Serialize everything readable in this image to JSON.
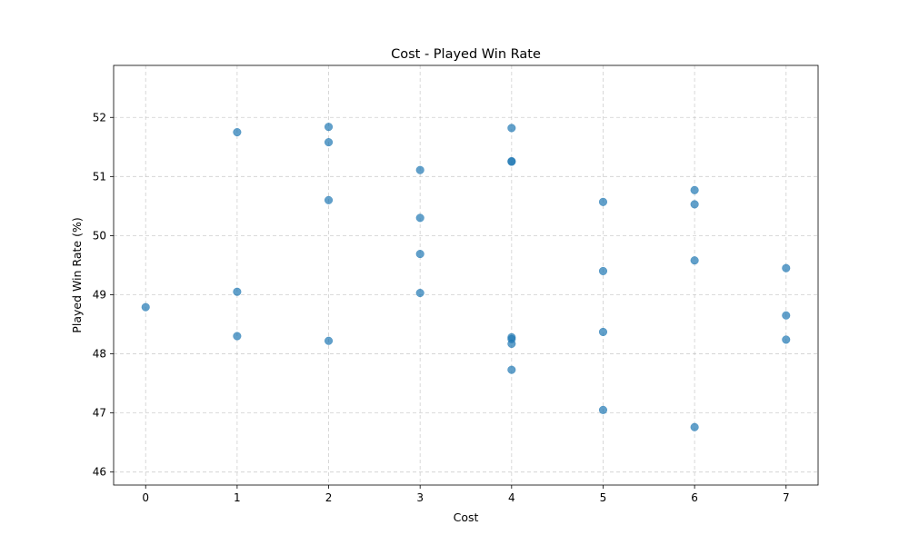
{
  "chart_data": {
    "type": "scatter",
    "title": "Cost - Played Win Rate",
    "xlabel": "Cost",
    "ylabel": "Played Win Rate (%)",
    "xlim": [
      -0.35,
      7.35
    ],
    "ylim": [
      45.78,
      52.88
    ],
    "xticks": [
      0,
      1,
      2,
      3,
      4,
      5,
      6,
      7
    ],
    "yticks": [
      46,
      47,
      48,
      49,
      50,
      51,
      52
    ],
    "grid": true,
    "point_color": "#1f77b4",
    "point_opacity": 0.7,
    "points": [
      {
        "x": 0,
        "y": 48.79
      },
      {
        "x": 1,
        "y": 51.75
      },
      {
        "x": 1,
        "y": 49.05
      },
      {
        "x": 1,
        "y": 48.3
      },
      {
        "x": 2,
        "y": 51.84
      },
      {
        "x": 2,
        "y": 51.58
      },
      {
        "x": 2,
        "y": 50.6
      },
      {
        "x": 2,
        "y": 48.22
      },
      {
        "x": 3,
        "y": 51.11
      },
      {
        "x": 3,
        "y": 50.3
      },
      {
        "x": 3,
        "y": 49.69
      },
      {
        "x": 3,
        "y": 49.03
      },
      {
        "x": 4,
        "y": 51.82
      },
      {
        "x": 4,
        "y": 51.25
      },
      {
        "x": 4,
        "y": 51.26
      },
      {
        "x": 4,
        "y": 48.28
      },
      {
        "x": 4,
        "y": 48.25
      },
      {
        "x": 4,
        "y": 48.17
      },
      {
        "x": 4,
        "y": 47.73
      },
      {
        "x": 5,
        "y": 50.57
      },
      {
        "x": 5,
        "y": 49.4
      },
      {
        "x": 5,
        "y": 48.37
      },
      {
        "x": 5,
        "y": 47.05
      },
      {
        "x": 6,
        "y": 50.77
      },
      {
        "x": 6,
        "y": 50.53
      },
      {
        "x": 6,
        "y": 49.58
      },
      {
        "x": 6,
        "y": 46.76
      },
      {
        "x": 7,
        "y": 49.45
      },
      {
        "x": 7,
        "y": 48.65
      },
      {
        "x": 7,
        "y": 48.24
      }
    ]
  }
}
